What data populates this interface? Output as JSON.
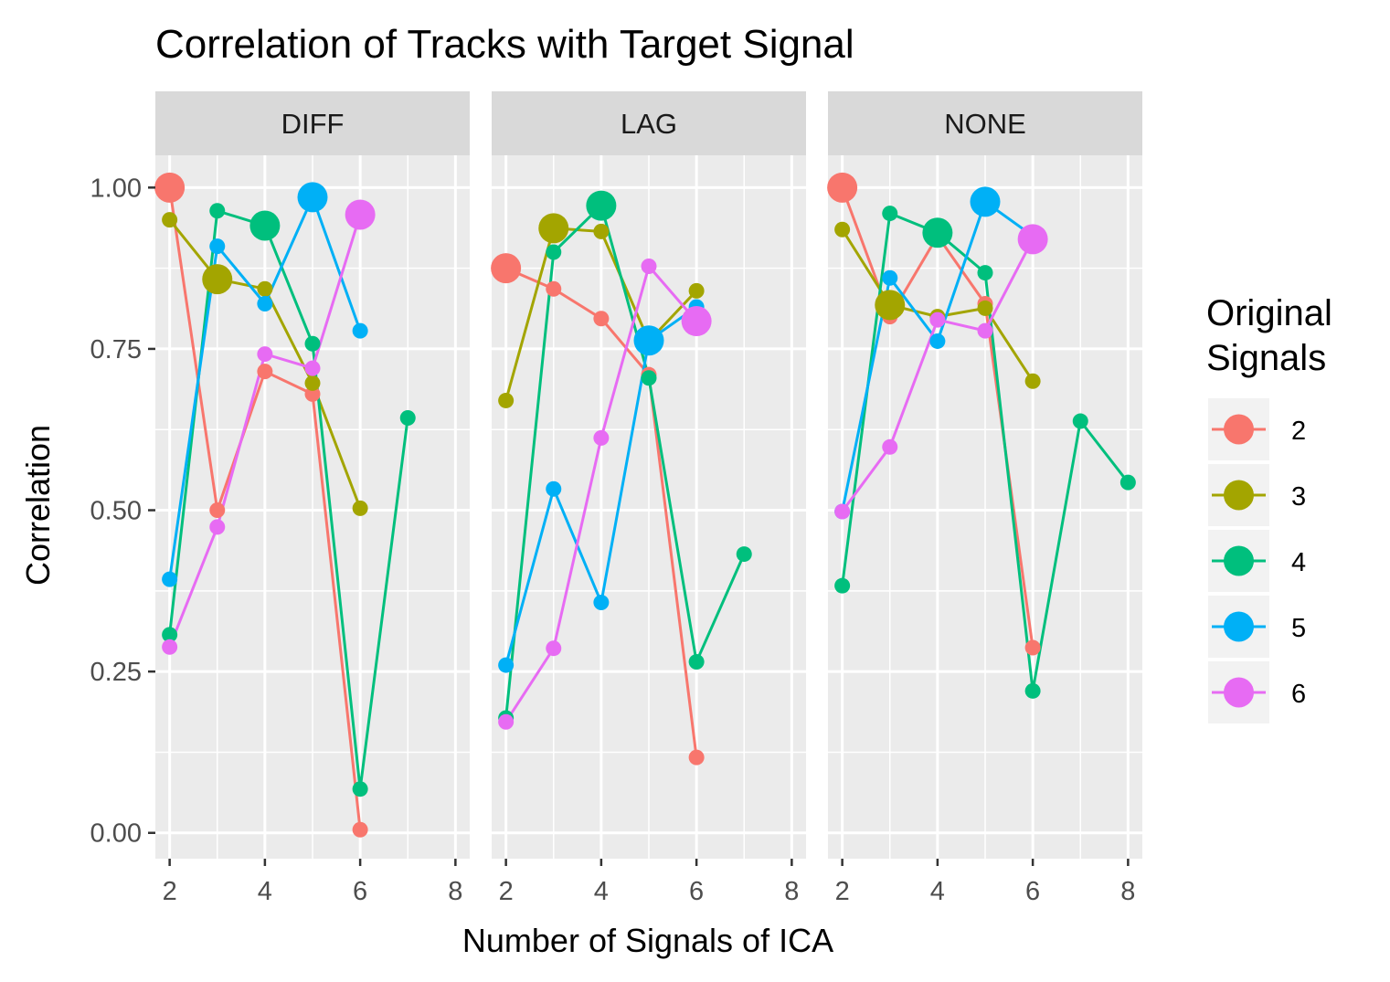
{
  "chart_data": {
    "type": "line",
    "title": "Correlation of Tracks with Target Signal",
    "xlabel": "Number of Signals of ICA",
    "ylabel": "Correlation",
    "xlim": [
      1.7,
      8.3
    ],
    "ylim": [
      -0.04,
      1.05
    ],
    "x_ticks": [
      2,
      4,
      6,
      8
    ],
    "y_ticks": [
      0.0,
      0.25,
      0.5,
      0.75,
      1.0
    ],
    "y_tick_labels": [
      "0.00",
      "0.25",
      "0.50",
      "0.75",
      "1.00"
    ],
    "grid": true,
    "legend": {
      "title_lines": [
        "Original",
        "Signals"
      ],
      "placement": "right",
      "entries": [
        "2",
        "3",
        "4",
        "5",
        "6"
      ]
    },
    "colors": {
      "2": "#F8766D",
      "3": "#A3A500",
      "4": "#00BF7D",
      "5": "#00B0F6",
      "6": "#E76BF3"
    },
    "panel_background": "#EBEBEB",
    "strip_background": "#D9D9D9",
    "note": "Larger marker marks the point where Number of Signals of ICA equals Original Signals",
    "facets": [
      {
        "label": "DIFF",
        "series": [
          {
            "name": "2",
            "x": [
              2,
              3,
              4,
              5,
              6
            ],
            "y": [
              1.0,
              0.5,
              0.715,
              0.68,
              0.005
            ]
          },
          {
            "name": "3",
            "x": [
              2,
              3,
              4,
              5,
              6
            ],
            "y": [
              0.95,
              0.858,
              0.843,
              0.697,
              0.503
            ]
          },
          {
            "name": "4",
            "x": [
              2,
              3,
              4,
              5,
              6,
              7
            ],
            "y": [
              0.307,
              0.964,
              0.941,
              0.758,
              0.068,
              0.643
            ]
          },
          {
            "name": "5",
            "x": [
              2,
              3,
              4,
              5,
              6
            ],
            "y": [
              0.393,
              0.909,
              0.82,
              0.985,
              0.778
            ]
          },
          {
            "name": "6",
            "x": [
              2,
              3,
              4,
              5,
              6
            ],
            "y": [
              0.288,
              0.474,
              0.742,
              0.72,
              0.958
            ]
          }
        ]
      },
      {
        "label": "LAG",
        "series": [
          {
            "name": "2",
            "x": [
              2,
              3,
              4,
              5,
              6
            ],
            "y": [
              0.875,
              0.843,
              0.797,
              0.71,
              0.117
            ]
          },
          {
            "name": "3",
            "x": [
              2,
              3,
              4,
              5,
              6
            ],
            "y": [
              0.67,
              0.937,
              0.932,
              0.762,
              0.84
            ]
          },
          {
            "name": "4",
            "x": [
              2,
              3,
              4,
              5,
              6,
              7
            ],
            "y": [
              0.178,
              0.9,
              0.972,
              0.705,
              0.265,
              0.432
            ]
          },
          {
            "name": "5",
            "x": [
              2,
              3,
              4,
              5,
              6
            ],
            "y": [
              0.26,
              0.533,
              0.357,
              0.763,
              0.815
            ]
          },
          {
            "name": "6",
            "x": [
              2,
              3,
              4,
              5,
              6
            ],
            "y": [
              0.172,
              0.286,
              0.612,
              0.878,
              0.793
            ]
          }
        ]
      },
      {
        "label": "NONE",
        "series": [
          {
            "name": "2",
            "x": [
              2,
              3,
              4,
              5,
              6
            ],
            "y": [
              1.0,
              0.8,
              0.925,
              0.82,
              0.287
            ]
          },
          {
            "name": "3",
            "x": [
              2,
              3,
              4,
              5,
              6
            ],
            "y": [
              0.935,
              0.818,
              0.8,
              0.813,
              0.7
            ]
          },
          {
            "name": "4",
            "x": [
              2,
              3,
              4,
              5,
              6,
              7,
              8
            ],
            "y": [
              0.383,
              0.96,
              0.93,
              0.868,
              0.22,
              0.638,
              0.543
            ]
          },
          {
            "name": "5",
            "x": [
              2,
              3,
              4,
              5,
              6
            ],
            "y": [
              0.498,
              0.86,
              0.762,
              0.978,
              0.925
            ]
          },
          {
            "name": "6",
            "x": [
              2,
              3,
              4,
              5,
              6
            ],
            "y": [
              0.498,
              0.598,
              0.795,
              0.778,
              0.92
            ]
          }
        ]
      }
    ]
  }
}
